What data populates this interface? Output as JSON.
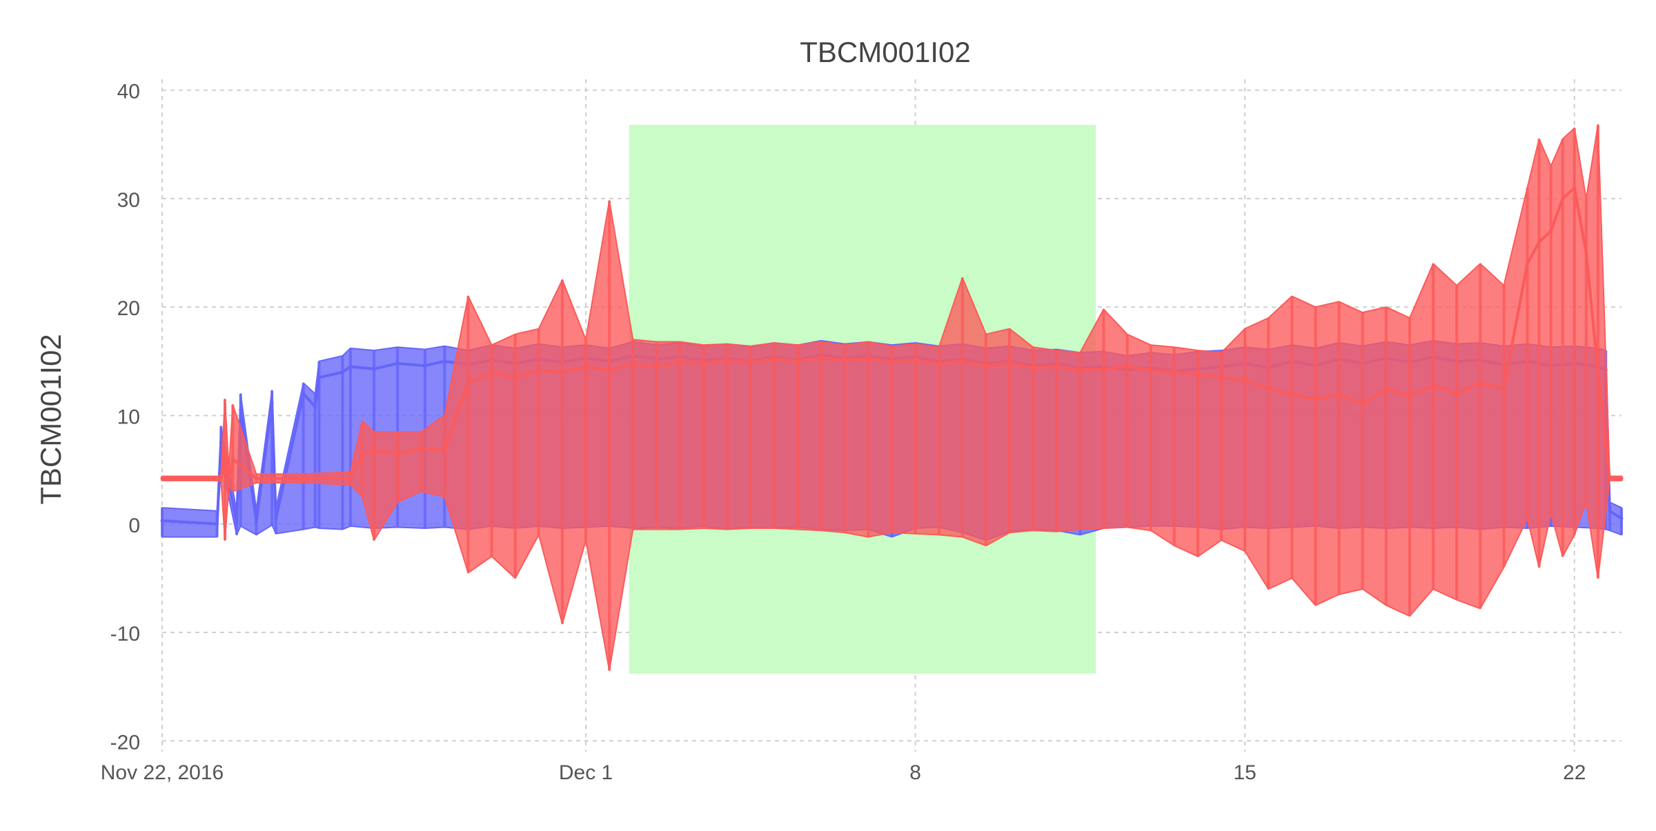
{
  "chart_data": {
    "type": "line",
    "title": "TBCM001I02",
    "xlabel": "",
    "ylabel": "TBCM001I02",
    "x_axis": {
      "kind": "date",
      "range": [
        "2016-11-22",
        "2016-12-23"
      ],
      "ticks": [
        {
          "date": "2016-11-22",
          "label": "Nov 22, 2016"
        },
        {
          "date": "2016-12-01",
          "label": "Dec 1"
        },
        {
          "date": "2016-12-08",
          "label": "8"
        },
        {
          "date": "2016-12-15",
          "label": "15"
        },
        {
          "date": "2016-12-22",
          "label": "22"
        }
      ]
    },
    "y_axis": {
      "range": [
        -21,
        41
      ],
      "ticks": [
        -20,
        -10,
        0,
        10,
        20,
        30,
        40
      ],
      "tick_labels": [
        "-20",
        "-10",
        "0",
        "10",
        "20",
        "30",
        "40"
      ]
    },
    "grid": {
      "x": true,
      "y": true,
      "style": "dashed"
    },
    "highlight_region": {
      "x": [
        "2016-12-01T22:00",
        "2016-12-11T20:00"
      ],
      "y": [
        -13.8,
        36.8
      ],
      "color": "#c9fcc6"
    },
    "series": [
      {
        "color": "#6565fa",
        "x": [
          "2016-11-22T00:00",
          "2016-11-23T04:00",
          "2016-11-23T06:00",
          "2016-11-23T14:00",
          "2016-11-23T16:00",
          "2016-11-24T00:00",
          "2016-11-24T08:00",
          "2016-11-24T10:00",
          "2016-11-25T00:00",
          "2016-11-25T06:00",
          "2016-11-25T08:00",
          "2016-11-25T20:00",
          "2016-11-26T00:00",
          "2016-11-26T12:00",
          "2016-11-27T00:00",
          "2016-11-27T14:00",
          "2016-11-28T00:00",
          "2016-11-28T12:00",
          "2016-11-29T00:00",
          "2016-11-29T12:00",
          "2016-11-30T00:00",
          "2016-11-30T12:00",
          "2016-12-01T00:00",
          "2016-12-01T12:00",
          "2016-12-02T00:00",
          "2016-12-02T12:00",
          "2016-12-03T00:00",
          "2016-12-03T12:00",
          "2016-12-04T00:00",
          "2016-12-04T12:00",
          "2016-12-05T00:00",
          "2016-12-05T12:00",
          "2016-12-06T00:00",
          "2016-12-06T12:00",
          "2016-12-07T00:00",
          "2016-12-07T12:00",
          "2016-12-08T00:00",
          "2016-12-08T12:00",
          "2016-12-09T00:00",
          "2016-12-09T12:00",
          "2016-12-10T00:00",
          "2016-12-10T12:00",
          "2016-12-11T00:00",
          "2016-12-11T12:00",
          "2016-12-12T00:00",
          "2016-12-12T12:00",
          "2016-12-13T00:00",
          "2016-12-13T12:00",
          "2016-12-14T00:00",
          "2016-12-14T12:00",
          "2016-12-15T00:00",
          "2016-12-15T12:00",
          "2016-12-16T00:00",
          "2016-12-16T12:00",
          "2016-12-17T00:00",
          "2016-12-17T12:00",
          "2016-12-18T00:00",
          "2016-12-18T12:00",
          "2016-12-19T00:00",
          "2016-12-19T12:00",
          "2016-12-20T00:00",
          "2016-12-20T12:00",
          "2016-12-21T00:00",
          "2016-12-21T12:00",
          "2016-12-22T00:00",
          "2016-12-22T12:00",
          "2016-12-22T16:00",
          "2016-12-22T18:00",
          "2016-12-23T00:00"
        ],
        "y": [
          0.3,
          0.0,
          7.5,
          0.1,
          10.5,
          0.2,
          11.2,
          0.5,
          12.0,
          10.8,
          13.5,
          14.0,
          14.5,
          14.3,
          14.8,
          14.6,
          15.0,
          14.7,
          15.1,
          14.8,
          15.2,
          14.9,
          15.3,
          15.0,
          15.5,
          15.2,
          15.4,
          15.1,
          15.3,
          15.0,
          15.4,
          15.1,
          15.6,
          15.3,
          15.5,
          15.2,
          15.4,
          15.0,
          15.2,
          14.8,
          15.0,
          14.6,
          14.8,
          14.4,
          14.5,
          14.2,
          14.4,
          14.1,
          14.3,
          14.5,
          14.8,
          14.4,
          15.0,
          14.6,
          15.2,
          14.8,
          15.3,
          14.9,
          15.4,
          15.0,
          15.1,
          14.7,
          15.0,
          14.6,
          14.8,
          14.5,
          14.2,
          1.2,
          0.5
        ],
        "band_min": [
          -1.2,
          -1.2,
          5.8,
          -1.0,
          -0.2,
          -1.0,
          -0.1,
          -0.9,
          -0.5,
          -0.3,
          -0.4,
          -0.5,
          -0.2,
          -0.4,
          -0.3,
          -0.4,
          -0.3,
          -0.5,
          -0.2,
          -0.4,
          -0.2,
          -0.4,
          -0.3,
          -0.2,
          -0.4,
          -0.3,
          -0.4,
          -0.2,
          -0.5,
          -0.3,
          -0.4,
          -0.3,
          -0.5,
          -0.6,
          -0.5,
          -1.2,
          -0.4,
          -0.3,
          -0.8,
          -1.5,
          -0.7,
          -0.5,
          -0.6,
          -1.0,
          -0.4,
          -0.3,
          -0.2,
          -0.2,
          -0.3,
          -0.5,
          -0.3,
          -0.4,
          -0.3,
          -0.2,
          -0.4,
          -0.3,
          -0.4,
          -0.3,
          -0.4,
          -0.3,
          -0.5,
          -0.3,
          -0.4,
          -0.2,
          -0.3,
          -0.4,
          -0.5,
          -0.6,
          -1.0
        ],
        "band_max": [
          1.5,
          1.2,
          9.0,
          1.2,
          12.0,
          1.3,
          12.3,
          1.5,
          13.0,
          12.0,
          15.0,
          15.5,
          16.2,
          16.0,
          16.3,
          16.1,
          16.4,
          16.0,
          16.5,
          16.2,
          16.6,
          16.3,
          16.5,
          16.2,
          16.8,
          16.5,
          16.7,
          16.4,
          16.6,
          16.3,
          16.7,
          16.5,
          16.9,
          16.6,
          16.8,
          16.5,
          16.7,
          16.4,
          16.6,
          16.2,
          16.4,
          16.0,
          16.1,
          15.8,
          15.9,
          15.5,
          15.8,
          15.6,
          15.9,
          16.0,
          16.3,
          16.1,
          16.5,
          16.2,
          16.7,
          16.4,
          16.8,
          16.5,
          16.9,
          16.6,
          16.7,
          16.4,
          16.6,
          16.3,
          16.4,
          16.2,
          16.0,
          2.0,
          1.5
        ]
      },
      {
        "color": "#fc5a5a",
        "x": [
          "2016-11-22T00:00",
          "2016-11-23T06:00",
          "2016-11-23T08:00",
          "2016-11-23T10:00",
          "2016-11-23T12:00",
          "2016-11-24T00:00",
          "2016-11-25T00:00",
          "2016-11-26T00:00",
          "2016-11-26T06:00",
          "2016-11-26T12:00",
          "2016-11-27T00:00",
          "2016-11-27T12:00",
          "2016-11-28T00:00",
          "2016-11-28T12:00",
          "2016-11-29T00:00",
          "2016-11-29T12:00",
          "2016-11-30T00:00",
          "2016-11-30T12:00",
          "2016-12-01T00:00",
          "2016-12-01T12:00",
          "2016-12-02T00:00",
          "2016-12-02T12:00",
          "2016-12-03T00:00",
          "2016-12-03T12:00",
          "2016-12-04T00:00",
          "2016-12-04T12:00",
          "2016-12-05T00:00",
          "2016-12-05T12:00",
          "2016-12-06T00:00",
          "2016-12-06T12:00",
          "2016-12-07T00:00",
          "2016-12-07T12:00",
          "2016-12-08T00:00",
          "2016-12-08T12:00",
          "2016-12-09T00:00",
          "2016-12-09T12:00",
          "2016-12-10T00:00",
          "2016-12-10T12:00",
          "2016-12-11T00:00",
          "2016-12-11T12:00",
          "2016-12-12T00:00",
          "2016-12-12T12:00",
          "2016-12-13T00:00",
          "2016-12-13T12:00",
          "2016-12-14T00:00",
          "2016-12-14T12:00",
          "2016-12-15T00:00",
          "2016-12-15T12:00",
          "2016-12-16T00:00",
          "2016-12-16T12:00",
          "2016-12-17T00:00",
          "2016-12-17T12:00",
          "2016-12-18T00:00",
          "2016-12-18T12:00",
          "2016-12-19T00:00",
          "2016-12-19T12:00",
          "2016-12-20T00:00",
          "2016-12-20T12:00",
          "2016-12-21T00:00",
          "2016-12-21T06:00",
          "2016-12-21T12:00",
          "2016-12-21T18:00",
          "2016-12-22T00:00",
          "2016-12-22T06:00",
          "2016-12-22T12:00",
          "2016-12-22T18:00",
          "2016-12-23T00:00"
        ],
        "y": [
          4.2,
          4.2,
          7.0,
          4.0,
          6.0,
          4.2,
          4.2,
          4.2,
          6.5,
          6.8,
          6.5,
          7.0,
          6.8,
          13.0,
          14.0,
          13.5,
          14.2,
          14.0,
          14.5,
          14.2,
          14.8,
          14.5,
          15.0,
          14.8,
          15.1,
          14.9,
          15.2,
          15.0,
          15.3,
          15.1,
          15.2,
          15.0,
          15.1,
          14.8,
          15.0,
          14.6,
          14.8,
          14.4,
          14.5,
          14.2,
          14.3,
          14.5,
          14.2,
          14.0,
          13.8,
          13.5,
          13.2,
          12.5,
          12.0,
          11.5,
          12.0,
          11.0,
          12.5,
          11.8,
          12.8,
          12.0,
          13.0,
          12.5,
          24.0,
          26.0,
          27.0,
          30.0,
          31.0,
          25.0,
          14.0,
          4.2,
          4.2
        ],
        "band_min": [
          4.0,
          4.0,
          -1.5,
          3.5,
          3.0,
          3.8,
          3.8,
          3.6,
          2.5,
          -1.5,
          2.0,
          3.0,
          2.5,
          -4.5,
          -3.0,
          -5.0,
          -1.0,
          -9.2,
          -1.5,
          -13.5,
          -0.5,
          -0.5,
          -0.5,
          -0.4,
          -0.5,
          -0.4,
          -0.4,
          -0.5,
          -0.6,
          -0.8,
          -1.2,
          -0.8,
          -0.9,
          -1.0,
          -1.2,
          -2.0,
          -0.8,
          -0.6,
          -0.7,
          -0.5,
          -0.4,
          -0.3,
          -0.6,
          -2.0,
          -3.0,
          -1.5,
          -2.5,
          -6.0,
          -5.0,
          -7.5,
          -6.5,
          -6.0,
          -7.5,
          -8.5,
          -6.0,
          -7.0,
          -7.8,
          -4.0,
          0.5,
          -4.0,
          1.0,
          -3.0,
          -1.0,
          2.0,
          -5.0,
          4.0,
          4.0
        ],
        "band_max": [
          4.4,
          4.4,
          11.5,
          5.0,
          11.0,
          4.6,
          4.6,
          4.8,
          9.5,
          8.5,
          8.5,
          8.5,
          10.0,
          21.0,
          16.5,
          17.5,
          18.0,
          22.5,
          17.0,
          29.8,
          17.0,
          16.8,
          16.8,
          16.5,
          16.6,
          16.4,
          16.7,
          16.5,
          16.8,
          16.5,
          16.8,
          16.4,
          16.6,
          16.3,
          22.7,
          17.5,
          18.0,
          16.3,
          16.0,
          15.8,
          19.8,
          17.5,
          16.5,
          16.3,
          16.0,
          15.8,
          18.0,
          19.0,
          21.0,
          20.0,
          20.5,
          19.5,
          20.0,
          19.0,
          24.0,
          22.0,
          24.0,
          22.0,
          31.0,
          35.5,
          33.0,
          35.5,
          36.5,
          30.0,
          36.8,
          4.4,
          4.4
        ]
      }
    ]
  }
}
